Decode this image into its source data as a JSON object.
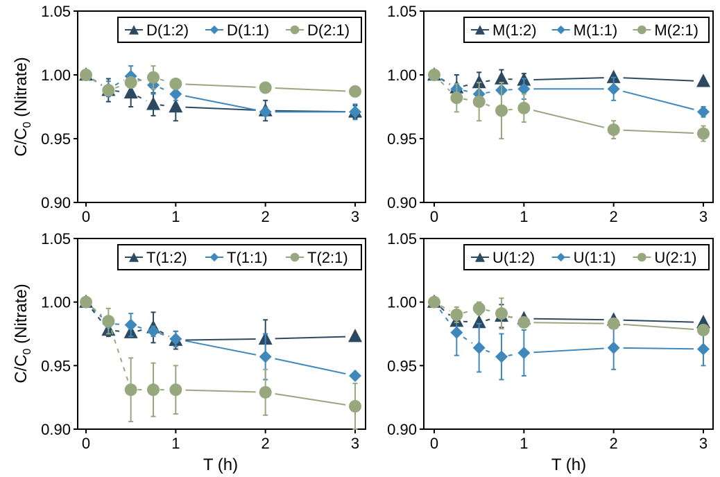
{
  "figure": {
    "shared_ylabel": "C/C0 (Nitrate)",
    "ylabel_main": "C/C",
    "ylabel_sub": "0",
    "ylabel_rest": " (Nitrate)",
    "xlabel": "T (h)"
  },
  "colors": {
    "ratio_1_2": "#2b4a62",
    "ratio_1_1": "#3f88bb",
    "ratio_2_1": "#98a87e"
  },
  "chart_data": [
    {
      "type": "line",
      "panel": "top-left",
      "title": "",
      "xlabel": "",
      "ylabel": "C/C0 (Nitrate)",
      "xlim": [
        0,
        3
      ],
      "ylim": [
        0.9,
        1.05
      ],
      "xticks": [
        "0",
        "1",
        "2",
        "3"
      ],
      "yticks": [
        "0.90",
        "0.95",
        "1.00",
        "1.05"
      ],
      "legend": "top-right",
      "x": [
        0,
        0.25,
        0.5,
        0.75,
        1,
        2,
        3
      ],
      "series": [
        {
          "name": "D(1:2)",
          "marker": "triangle",
          "color": "#2b4a62",
          "values": [
            1.0,
            0.988,
            0.986,
            0.977,
            0.975,
            0.972,
            0.971
          ],
          "err": [
            0,
            0.009,
            0.011,
            0.009,
            0.011,
            0.008,
            0.005
          ]
        },
        {
          "name": "D(1:1)",
          "marker": "diamond",
          "color": "#3f88bb",
          "values": [
            1.0,
            0.989,
            0.999,
            0.992,
            0.985,
            0.971,
            0.971
          ],
          "err": [
            0,
            0.006,
            0.008,
            0.007,
            0.005,
            0.003,
            0.006
          ]
        },
        {
          "name": "D(2:1)",
          "marker": "circle",
          "color": "#98a87e",
          "values": [
            1.0,
            0.988,
            0.994,
            0.998,
            0.993,
            0.99,
            0.987
          ],
          "err": [
            0,
            0.004,
            0.003,
            0.009,
            0.002,
            0.002,
            0.002
          ]
        }
      ]
    },
    {
      "type": "line",
      "panel": "top-right",
      "title": "",
      "xlabel": "",
      "ylabel": "",
      "xlim": [
        0,
        3
      ],
      "ylim": [
        0.9,
        1.05
      ],
      "xticks": [
        "0",
        "1",
        "2",
        "3"
      ],
      "yticks": [
        "0.90",
        "0.95",
        "1.00",
        "1.05"
      ],
      "legend": "top-right",
      "x": [
        0,
        0.25,
        0.5,
        0.75,
        1,
        2,
        3
      ],
      "series": [
        {
          "name": "M(1:2)",
          "marker": "triangle",
          "color": "#2b4a62",
          "values": [
            1.0,
            0.99,
            0.994,
            0.997,
            0.996,
            0.998,
            0.995
          ],
          "err": [
            0,
            0.01,
            0.008,
            0.007,
            0.005,
            0.001,
            0.001
          ]
        },
        {
          "name": "M(1:1)",
          "marker": "diamond",
          "color": "#3f88bb",
          "values": [
            1.0,
            0.989,
            0.985,
            0.988,
            0.989,
            0.989,
            0.971
          ],
          "err": [
            0,
            0.004,
            0.003,
            0.003,
            0.008,
            0.009,
            0.004
          ]
        },
        {
          "name": "M(2:1)",
          "marker": "circle",
          "color": "#98a87e",
          "values": [
            1.0,
            0.982,
            0.979,
            0.972,
            0.974,
            0.957,
            0.954
          ],
          "err": [
            0,
            0.011,
            0.015,
            0.022,
            0.011,
            0.007,
            0.006
          ]
        }
      ]
    },
    {
      "type": "line",
      "panel": "bottom-left",
      "title": "",
      "xlabel": "T (h)",
      "ylabel": "C/C0 (Nitrate)",
      "xlim": [
        0,
        3
      ],
      "ylim": [
        0.9,
        1.05
      ],
      "xticks": [
        "0",
        "1",
        "2",
        "3"
      ],
      "yticks": [
        "0.90",
        "0.95",
        "1.00",
        "1.05"
      ],
      "legend": "top-right",
      "x": [
        0,
        0.25,
        0.5,
        0.75,
        1,
        2,
        3
      ],
      "series": [
        {
          "name": "T(1:2)",
          "marker": "triangle",
          "color": "#2b4a62",
          "values": [
            1.0,
            0.978,
            0.976,
            0.98,
            0.97,
            0.971,
            0.973
          ],
          "err": [
            0,
            0.005,
            0.0,
            0.012,
            0.007,
            0.015,
            0.0
          ]
        },
        {
          "name": "T(1:1)",
          "marker": "diamond",
          "color": "#3f88bb",
          "values": [
            1.0,
            0.983,
            0.982,
            0.977,
            0.971,
            0.957,
            0.942
          ],
          "err": [
            0,
            0.003,
            0.009,
            0.004,
            0.006,
            0.018,
            0.0
          ]
        },
        {
          "name": "T(2:1)",
          "marker": "circle",
          "color": "#98a87e",
          "values": [
            1.0,
            0.985,
            0.931,
            0.931,
            0.931,
            0.929,
            0.918
          ],
          "err": [
            0,
            0.01,
            0.025,
            0.021,
            0.019,
            0.018,
            0.018
          ]
        }
      ]
    },
    {
      "type": "line",
      "panel": "bottom-right",
      "title": "",
      "xlabel": "T (h)",
      "ylabel": "",
      "xlim": [
        0,
        3
      ],
      "ylim": [
        0.9,
        1.05
      ],
      "xticks": [
        "0",
        "1",
        "2",
        "3"
      ],
      "yticks": [
        "0.90",
        "0.95",
        "1.00",
        "1.05"
      ],
      "legend": "top-right",
      "x": [
        0,
        0.25,
        0.5,
        0.75,
        1,
        2,
        3
      ],
      "series": [
        {
          "name": "U(1:2)",
          "marker": "triangle",
          "color": "#2b4a62",
          "values": [
            1.0,
            0.985,
            0.984,
            0.989,
            0.987,
            0.986,
            0.984
          ],
          "err": [
            0,
            0.008,
            0.0,
            0.009,
            0.0,
            0.0,
            0.0
          ]
        },
        {
          "name": "U(1:1)",
          "marker": "diamond",
          "color": "#3f88bb",
          "values": [
            1.0,
            0.976,
            0.964,
            0.957,
            0.96,
            0.964,
            0.963
          ],
          "err": [
            0,
            0.018,
            0.019,
            0.018,
            0.018,
            0.017,
            0.013
          ]
        },
        {
          "name": "U(2:1)",
          "marker": "circle",
          "color": "#98a87e",
          "values": [
            1.0,
            0.99,
            0.995,
            0.991,
            0.984,
            0.983,
            0.978
          ],
          "err": [
            0,
            0.006,
            0.005,
            0.012,
            0.002,
            0.002,
            0.004
          ]
        }
      ]
    }
  ]
}
